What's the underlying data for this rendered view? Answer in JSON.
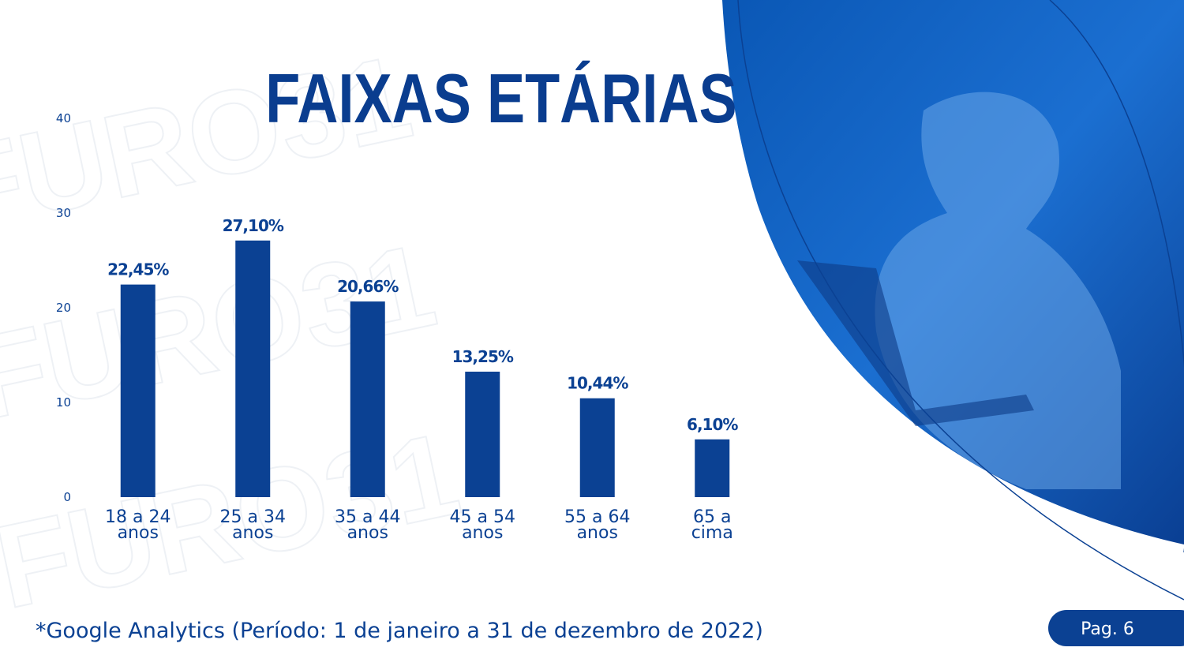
{
  "watermark": "FURO31",
  "chart_data": {
    "type": "bar",
    "title": "FAIXAS ETÁRIAS",
    "categories": [
      "18 a 24\nanos",
      "25 a 34\nanos",
      "35 a 44\nanos",
      "45 a 54\nanos",
      "55 a 64\nanos",
      "65 a\ncima"
    ],
    "values": [
      22.45,
      27.1,
      20.66,
      13.25,
      10.44,
      6.1
    ],
    "value_labels": [
      "22,45%",
      "27,10%",
      "20,66%",
      "13,25%",
      "10,44%",
      "6,10%"
    ],
    "color": "#0b4193",
    "ylim": [
      0,
      40
    ],
    "yticks": [
      0,
      10,
      20,
      30,
      40
    ],
    "grid": false
  },
  "footer": {
    "source": "*Google Analytics (Período: 1 de janeiro a 31 de dezembro de 2022)",
    "page": "Pag. 6"
  }
}
